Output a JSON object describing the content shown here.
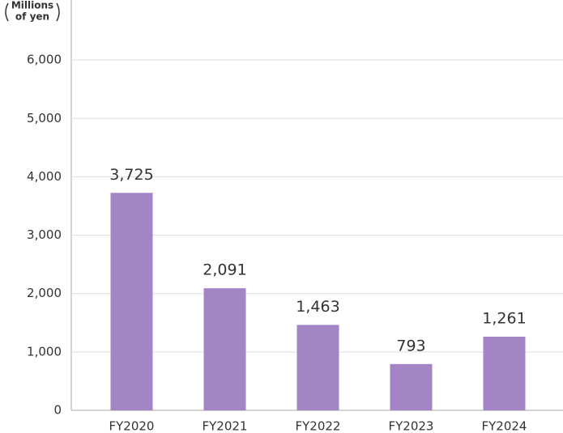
{
  "chart_data": {
    "type": "bar",
    "y_label": [
      "Millions",
      "of yen"
    ],
    "categories": [
      "FY2020",
      "FY2021",
      "FY2022",
      "FY2023",
      "FY2024"
    ],
    "values": [
      3725,
      2091,
      1463,
      793,
      1261
    ],
    "value_labels": [
      "3,725",
      "2,091",
      "1,463",
      "793",
      "1,261"
    ],
    "color": "#a385c6",
    "ylim": [
      0,
      7000
    ],
    "yticks": [
      0,
      {
        "value": 1000,
        "label": "1,000"
      },
      {
        "value": 2000,
        "label": "2,000"
      },
      {
        "value": 3000,
        "label": "3,000"
      },
      {
        "value": 4000,
        "label": "4,000"
      },
      {
        "value": 5000,
        "label": "5,000"
      },
      {
        "value": 6000,
        "label": "6,000"
      }
    ],
    "grid": true
  }
}
